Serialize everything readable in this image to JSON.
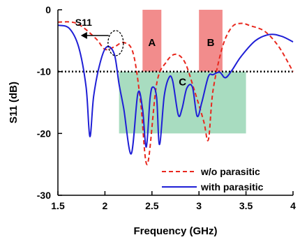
{
  "chart_data": {
    "type": "line",
    "xlabel": "Frequency (GHz)",
    "ylabel": "S11 (dB)",
    "xlim": [
      1.5,
      4
    ],
    "ylim": [
      -30,
      0
    ],
    "x_ticks": [
      "1.5",
      "2",
      "2.5",
      "3",
      "3.5",
      "4"
    ],
    "y_ticks": [
      "0",
      "-10",
      "-20",
      "-30"
    ],
    "grid": false,
    "legend_position": "bottom-right",
    "reference_line": {
      "y": -10,
      "style": "dotted",
      "color": "#000000"
    },
    "regions": [
      {
        "label": "A",
        "x": [
          2.4,
          2.6
        ],
        "y": [
          -10,
          0
        ],
        "color": "#f28c8c"
      },
      {
        "label": "B",
        "x": [
          3.0,
          3.25
        ],
        "y": [
          -10,
          0
        ],
        "color": "#f28c8c"
      },
      {
        "label": "C",
        "x": [
          2.15,
          3.5
        ],
        "y": [
          -20,
          -10
        ],
        "color": "#a8dcc0"
      }
    ],
    "annotation": {
      "text": "S11",
      "target": [
        2.07,
        -6.3
      ]
    },
    "series": [
      {
        "name": "w/o parasitic",
        "color": "#e8281e",
        "dash": "dashed",
        "points": [
          [
            1.5,
            -2
          ],
          [
            1.7,
            -2.2
          ],
          [
            1.9,
            -4.6
          ],
          [
            2.0,
            -6.4
          ],
          [
            2.1,
            -6
          ],
          [
            2.2,
            -5.3
          ],
          [
            2.3,
            -7
          ],
          [
            2.38,
            -15
          ],
          [
            2.45,
            -25
          ],
          [
            2.55,
            -12
          ],
          [
            2.65,
            -8.5
          ],
          [
            2.75,
            -7.2
          ],
          [
            2.85,
            -8.5
          ],
          [
            2.95,
            -13
          ],
          [
            3.05,
            -18
          ],
          [
            3.1,
            -21
          ],
          [
            3.15,
            -13
          ],
          [
            3.25,
            -6
          ],
          [
            3.35,
            -2.8
          ],
          [
            3.45,
            -2.2
          ],
          [
            3.55,
            -2.6
          ],
          [
            3.7,
            -3.5
          ],
          [
            3.85,
            -6
          ],
          [
            4.0,
            -10
          ]
        ]
      },
      {
        "name": "with parasitic",
        "color": "#1f1fd6",
        "dash": "solid",
        "points": [
          [
            1.5,
            -2.5
          ],
          [
            1.62,
            -3
          ],
          [
            1.72,
            -6
          ],
          [
            1.8,
            -12.5
          ],
          [
            1.84,
            -20.5
          ],
          [
            1.88,
            -14
          ],
          [
            1.95,
            -8.5
          ],
          [
            2.02,
            -6
          ],
          [
            2.1,
            -7.2
          ],
          [
            2.15,
            -12
          ],
          [
            2.2,
            -16
          ],
          [
            2.28,
            -23.3
          ],
          [
            2.35,
            -13.5
          ],
          [
            2.4,
            -16
          ],
          [
            2.44,
            -22.2
          ],
          [
            2.48,
            -14.3
          ],
          [
            2.51,
            -12.5
          ],
          [
            2.55,
            -14.2
          ],
          [
            2.58,
            -21.8
          ],
          [
            2.63,
            -14
          ],
          [
            2.68,
            -11
          ],
          [
            2.72,
            -11.5
          ],
          [
            2.78,
            -17
          ],
          [
            2.82,
            -16
          ],
          [
            2.87,
            -12.7
          ],
          [
            2.93,
            -12.5
          ],
          [
            2.98,
            -17.2
          ],
          [
            3.03,
            -15
          ],
          [
            3.1,
            -10.8
          ],
          [
            3.15,
            -10.5
          ],
          [
            3.22,
            -10.1
          ],
          [
            3.28,
            -11
          ],
          [
            3.35,
            -9.8
          ],
          [
            3.45,
            -7.5
          ],
          [
            3.6,
            -5
          ],
          [
            3.75,
            -4
          ],
          [
            3.88,
            -4.3
          ],
          [
            4.0,
            -5.2
          ]
        ]
      }
    ]
  }
}
